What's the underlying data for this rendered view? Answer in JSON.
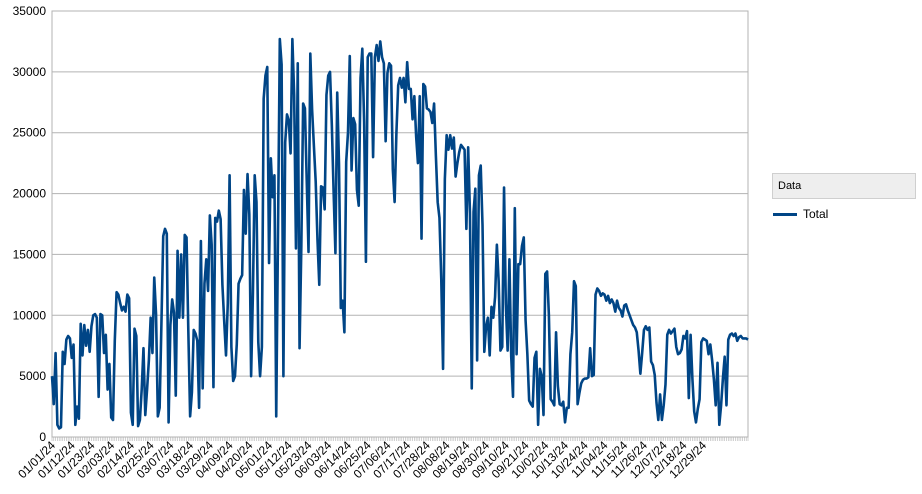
{
  "chart_data": {
    "type": "line",
    "title": "",
    "xlabel": "",
    "ylabel": "",
    "ylim": [
      0,
      35000
    ],
    "yticks": [
      0,
      5000,
      10000,
      15000,
      20000,
      25000,
      30000,
      35000
    ],
    "xtick_labels": [
      "01/01/24",
      "01/12/24",
      "01/23/24",
      "02/03/24",
      "02/14/24",
      "02/25/24",
      "03/07/24",
      "03/18/24",
      "03/29/24",
      "04/09/24",
      "04/20/24",
      "05/01/24",
      "05/12/24",
      "05/23/24",
      "06/03/24",
      "06/14/24",
      "06/25/24",
      "07/06/24",
      "07/17/24",
      "07/28/24",
      "08/08/24",
      "08/19/24",
      "08/30/24",
      "09/10/24",
      "09/21/24",
      "10/02/24",
      "10/13/24",
      "10/24/24",
      "11/04/24",
      "11/15/24",
      "11/26/24",
      "12/07/24",
      "12/18/24",
      "12/29/24"
    ],
    "grid": "horizontal",
    "legend": {
      "title": "Data",
      "position": "right"
    },
    "series": [
      {
        "name": "Total",
        "color": "#004586",
        "values": [
          5000,
          2700,
          6900,
          1000,
          700,
          800,
          7000,
          6000,
          8000,
          8300,
          8100,
          6500,
          7600,
          1000,
          2500,
          1500,
          9300,
          6700,
          9200,
          7500,
          8800,
          7000,
          9100,
          10000,
          10100,
          9800,
          3300,
          10100,
          10000,
          6900,
          8400,
          3900,
          6000,
          1600,
          1400,
          7900,
          11900,
          11700,
          11000,
          10400,
          10700,
          10300,
          11700,
          11400,
          2000,
          1000,
          8900,
          8300,
          900,
          1400,
          3900,
          7300,
          1800,
          3900,
          6300,
          9800,
          6900,
          13100,
          10100,
          1700,
          2400,
          9300,
          16500,
          17100,
          16700,
          1200,
          9200,
          11300,
          10200,
          3400,
          15300,
          9800,
          15000,
          9800,
          16600,
          16400,
          8700,
          1700,
          3700,
          8800,
          8500,
          7900,
          2400,
          16100,
          4000,
          12600,
          14600,
          12000,
          18200,
          15800,
          4100,
          18000,
          17700,
          18600,
          17900,
          12500,
          9500,
          6700,
          11000,
          21500,
          7400,
          4600,
          5000,
          7600,
          12600,
          13000,
          13300,
          20300,
          16700,
          21600,
          18300,
          5000,
          11800,
          21500,
          19300,
          7800,
          5000,
          7400,
          27800,
          29700,
          30400,
          14300,
          22900,
          19700,
          21500,
          1700,
          17000,
          32700,
          30600,
          5000,
          24200,
          26500,
          26000,
          23300,
          32700,
          28100,
          15500,
          30700,
          7300,
          15700,
          27400,
          27000,
          21100,
          15200,
          31500,
          26900,
          23900,
          21000,
          16200,
          12500,
          20600,
          20500,
          18700,
          28100,
          29700,
          30000,
          25600,
          20100,
          15100,
          28300,
          22400,
          10600,
          11200,
          8600,
          22600,
          25000,
          31300,
          21900,
          26200,
          25700,
          20300,
          19000,
          29500,
          31900,
          25900,
          14400,
          31200,
          31500,
          31500,
          23000,
          31200,
          32200,
          30900,
          32500,
          31200,
          30700,
          24300,
          29900,
          30700,
          30500,
          22000,
          19300,
          25000,
          28900,
          29500,
          28700,
          29500,
          27500,
          30800,
          28600,
          28600,
          26100,
          28000,
          24700,
          22500,
          28000,
          16300,
          29000,
          28800,
          27000,
          26900,
          26700,
          25800,
          27400,
          23100,
          19300,
          18000,
          13000,
          5600,
          21200,
          24800,
          23600,
          24800,
          23700,
          24600,
          21400,
          22500,
          23400,
          24000,
          23800,
          23600,
          17100,
          23800,
          18400,
          4000,
          18500,
          20400,
          6300,
          21500,
          22300,
          17400,
          7000,
          9100,
          9800,
          6700,
          10700,
          9800,
          11500,
          15800,
          12800,
          7100,
          7400,
          20500,
          10900,
          7100,
          14600,
          6600,
          3300,
          18800,
          6800,
          14200,
          14200,
          15700,
          16400,
          9600,
          6800,
          3000,
          2700,
          2500,
          6500,
          7000,
          1000,
          5600,
          5000,
          1800,
          13400,
          13600,
          10000,
          3100,
          2900,
          2600,
          8600,
          4200,
          2700,
          2600,
          2900,
          1200,
          2400,
          2400,
          6800,
          8600,
          12800,
          12400,
          2700,
          3600,
          4400,
          4700,
          4800,
          4800,
          4900,
          7300,
          5000,
          5100,
          11700,
          12200,
          12000,
          11600,
          11800,
          11700,
          11200,
          11600,
          11000,
          11300,
          11000,
          10300,
          11200,
          10600,
          10400,
          9900,
          10800,
          10900,
          10400,
          10000,
          9600,
          9200,
          9000,
          8600,
          7100,
          5200,
          6900,
          8800,
          9100,
          8800,
          9000,
          6200,
          5900,
          5100,
          2800,
          1400,
          3500,
          1400,
          2600,
          4300,
          8400,
          8800,
          8500,
          8700,
          8900,
          7400,
          6800,
          6900,
          7200,
          8300,
          8100,
          8700,
          3200,
          8400,
          4800,
          2100,
          1200,
          2300,
          3100,
          7800,
          8100,
          8000,
          7900,
          6800,
          7600,
          6300,
          4700,
          2600,
          6100,
          1000,
          2600,
          4800,
          6600,
          2600,
          8000,
          8400,
          8500,
          8300,
          8500,
          7900,
          8200,
          8300,
          8100,
          8100,
          8100,
          8000
        ]
      }
    ]
  }
}
